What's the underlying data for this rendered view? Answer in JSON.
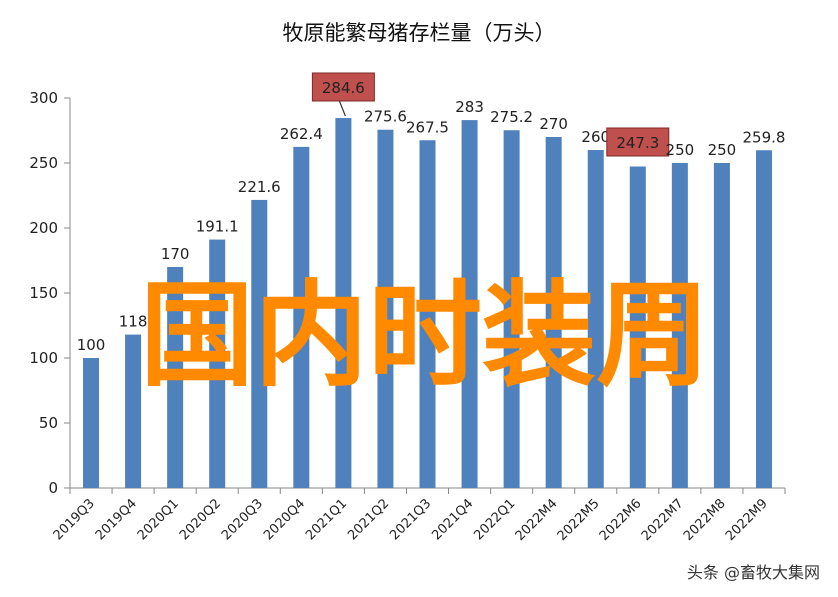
{
  "chart_data": {
    "type": "bar",
    "title": "牧原能繁母猪存栏量（万头）",
    "xlabel": "",
    "ylabel": "",
    "categories": [
      "2019Q3",
      "2019Q4",
      "2020Q1",
      "2020Q2",
      "2020Q3",
      "2020Q4",
      "2021Q1",
      "2021Q2",
      "2021Q3",
      "2021Q4",
      "2022Q1",
      "2022M4",
      "2022M5",
      "2022M6",
      "2022M7",
      "2022M8",
      "2022M9"
    ],
    "values": [
      100,
      118,
      170,
      191.1,
      221.6,
      262.4,
      284.6,
      275.6,
      267.5,
      283,
      275.2,
      270,
      260,
      247.3,
      250,
      250,
      259.8
    ],
    "value_labels": [
      "100",
      "118",
      "170",
      "191.1",
      "221.6",
      "262.4",
      "284.6",
      "275.6",
      "267.5",
      "283",
      "275.2",
      "270",
      "260",
      "247.3",
      "250",
      "250",
      "259.8"
    ],
    "highlighted_labels": [
      "284.6",
      "247.3"
    ],
    "yticks": [
      "0",
      "50",
      "100",
      "150",
      "200",
      "250",
      "300"
    ],
    "ylim": [
      0,
      300
    ],
    "grid": false,
    "colors": {
      "bar": "#4f81bd",
      "highlight_box": "#c0504d",
      "watermark": "#ff8a00"
    }
  },
  "overlay": {
    "watermark_text": "国内时装周",
    "credit": "头条 @畜牧大集网"
  }
}
